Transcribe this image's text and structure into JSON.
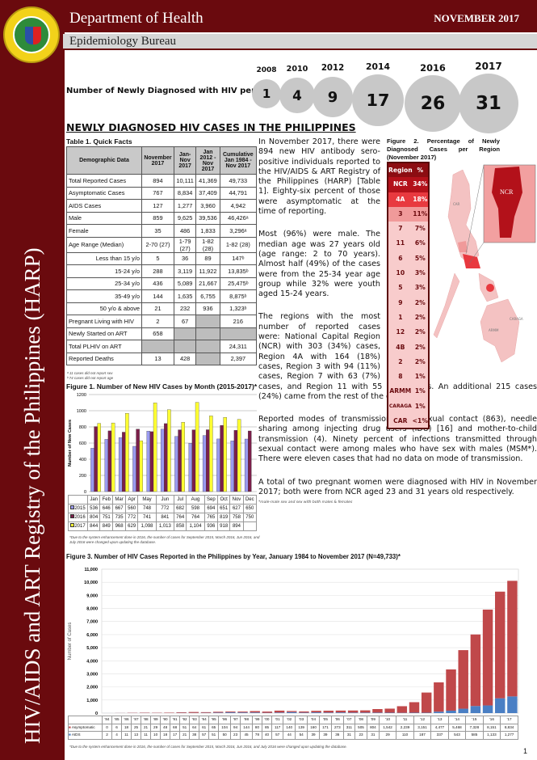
{
  "sidebar": {
    "title": "HIV/AIDS  and ART Registry of the Philippines (HARP)"
  },
  "header": {
    "department": "Department of Health",
    "bureau": "Epidemiology Bureau",
    "month": "NOVEMBER 2017",
    "seal_text": "REPUBLIC OF THE PHILIPPINES · DEPARTMENT OF HEALTH"
  },
  "per_day": {
    "label": "Number of Newly Diagnosed with HIV per day:",
    "items": [
      {
        "year": "2008",
        "value": "1"
      },
      {
        "year": "2010",
        "value": "4"
      },
      {
        "year": "2012",
        "value": "9"
      },
      {
        "year": "2014",
        "value": "17"
      },
      {
        "year": "2016",
        "value": "26"
      },
      {
        "year": "2017",
        "value": "31"
      }
    ]
  },
  "main_title": "NEWLY DIAGNOSED HIV CASES IN THE PHILIPPINES",
  "table1": {
    "caption": "Table 1. Quick Facts",
    "headers": [
      "Demographic Data",
      "November 2017",
      "Jan-Nov 2017",
      "Jan 2012 - Nov 2017",
      "Cumulative Jan 1984 - Nov 2017"
    ],
    "rows": [
      {
        "label": "Total Reported Cases",
        "cells": [
          "894",
          "10,111",
          "41,369",
          "49,733"
        ]
      },
      {
        "label": "Asymptomatic Cases",
        "cells": [
          "767",
          "8,834",
          "37,409",
          "44,791"
        ]
      },
      {
        "label": "AIDS Cases",
        "cells": [
          "127",
          "1,277",
          "3,960",
          "4,942"
        ]
      },
      {
        "label": "Male",
        "cells": [
          "859",
          "9,625",
          "39,536",
          "46,426ᵃ"
        ]
      },
      {
        "label": "Female",
        "cells": [
          "35",
          "486",
          "1,833",
          "3,296ᵃ"
        ]
      },
      {
        "label": "Age Range (Median)",
        "cells": [
          "2-70 (27)",
          "1-79 (27)",
          "1-82 (28)",
          "1-82 (28)"
        ]
      },
      {
        "label": "Less than 15 y/o",
        "sub": true,
        "cells": [
          "5",
          "36",
          "89",
          "147ᵇ"
        ]
      },
      {
        "label": "15-24 y/o",
        "sub": true,
        "cells": [
          "288",
          "3,119",
          "11,922",
          "13,835ᵇ"
        ]
      },
      {
        "label": "25-34 y/o",
        "sub": true,
        "cells": [
          "436",
          "5,089",
          "21,667",
          "25,475ᵇ"
        ]
      },
      {
        "label": "35-49 y/o",
        "sub": true,
        "cells": [
          "144",
          "1,635",
          "6,755",
          "8,875ᵇ"
        ]
      },
      {
        "label": "50 y/o & above",
        "sub": true,
        "cells": [
          "21",
          "232",
          "936",
          "1,323ᵇ"
        ]
      },
      {
        "label": "Pregnant Living with HIV",
        "cells": [
          "2",
          "67",
          null,
          "216"
        ]
      },
      {
        "label": "Newly Started on ART",
        "cells": [
          "658",
          null,
          null,
          null
        ]
      },
      {
        "label": "Total PLHIV on ART",
        "cells": [
          null,
          null,
          null,
          "24,311"
        ]
      },
      {
        "label": "Reported Deaths",
        "cells": [
          "13",
          "428",
          null,
          "2,397"
        ]
      }
    ],
    "footnotes": [
      "ᵃ 11 cases did not report sex",
      "ᵇ 74 cases did not report age"
    ]
  },
  "paragraphs": {
    "p1": "In November 2017, there were 894 new HIV antibody sero-positive individuals reported to the HIV/AIDS & ART Registry of the Philippines (HARP) [Table 1]. Eighty-six percent of those were asymptomatic at the time of reporting.",
    "p2": "Most (96%) were male. The median age was 27 years old (age range: 2 to 70 years). Almost half (49%) of the cases were from the 25-34 year age group while 32% were youth aged 15-24 years.",
    "p3": "The regions with the most number of reported cases were: National Capital Region (NCR) with 303 (34%) cases, Region 4A with 164 (18%) cases, Region 3 with 94 (11%) cases, Region 7 with 63 (7%) cases,  and Region 11 with 55 (6%) cases. An additional 215 cases (24%) came from the rest of the country.",
    "p4": "Reported modes of transmission were sexual contact (863), needle sharing among injecting drug users (IDU) [16] and mother-to-child transmission (4). Ninety percent of infections transmitted through sexual contact were among males who have sex with males (MSM*). There were eleven cases that had no data on mode of transmission.",
    "p5": "A total of two pregnant women were diagnosed with HIV in November 2017; both were from NCR aged 23 and 31 years old respectively.",
    "footnote": "*male-male sex and sex with both males & females"
  },
  "figure2": {
    "caption": "Figure 2. Percentage of Newly Diagnosed Cases per Region (November 2017)",
    "headers": [
      "Region",
      "%"
    ],
    "rows": [
      [
        "NCR",
        "34%"
      ],
      [
        "4A",
        "18%"
      ],
      [
        "3",
        "11%"
      ],
      [
        "7",
        "7%"
      ],
      [
        "11",
        "6%"
      ],
      [
        "6",
        "5%"
      ],
      [
        "10",
        "3%"
      ],
      [
        "5",
        "3%"
      ],
      [
        "9",
        "2%"
      ],
      [
        "1",
        "2%"
      ],
      [
        "12",
        "2%"
      ],
      [
        "4B",
        "2%"
      ],
      [
        "2",
        "2%"
      ],
      [
        "8",
        "1%"
      ],
      [
        "ARMM",
        "1%"
      ],
      [
        "CARAGA",
        "1%"
      ],
      [
        "CAR",
        "<1%"
      ]
    ],
    "map_labels": [
      "NCR",
      "CAR",
      "CARAGA",
      "ARMM"
    ],
    "colors": {
      "header": "#8c0d12",
      "top": "#b3111a",
      "second": "#e8393f",
      "third": "#f09a9a",
      "rest": "#f8cccc"
    }
  },
  "chart_data": [
    {
      "type": "bar",
      "title": "Figure 1. Number of New HIV Cases by Month  (2015-2017)*",
      "ylabel": "Number of New Cases",
      "ylim": [
        0,
        1200
      ],
      "yticks": [
        0,
        200,
        400,
        600,
        800,
        1000,
        1200
      ],
      "grid": true,
      "categories": [
        "Jan",
        "Feb",
        "Mar",
        "Apr",
        "May",
        "Jun",
        "Jul",
        "Aug",
        "Sep",
        "Oct",
        "Nov",
        "Dec"
      ],
      "series": [
        {
          "name": "2015",
          "color": "#9a9af0",
          "values": [
            536,
            646,
            667,
            560,
            748,
            772,
            682,
            598,
            694,
            651,
            627,
            650
          ]
        },
        {
          "name": "2016",
          "color": "#7b1f4a",
          "values": [
            804,
            751,
            735,
            772,
            741,
            841,
            764,
            764,
            765,
            819,
            758,
            750
          ]
        },
        {
          "name": "2017",
          "color": "#ffff33",
          "values": [
            844,
            849,
            968,
            629,
            1098,
            1013,
            858,
            1104,
            936,
            918,
            894,
            null
          ]
        }
      ],
      "footnote": "*Due to the system enhancement done in 2016, the number of cases for September 2015, March 2016, Jun 2016, and July 2016 were changed upon updating the database."
    },
    {
      "type": "bar",
      "stacked": true,
      "title": "Figure 3. Number of HIV Cases Reported in the Philippines by Year, January 1984 to November 2017 (N=49,733)*",
      "ylabel": "Number of Cases",
      "ylim": [
        0,
        11000
      ],
      "yticks": [
        "0",
        "1,000",
        "2,000",
        "3,000",
        "4,000",
        "5,000",
        "6,000",
        "7,000",
        "8,000",
        "9,000",
        "10,000",
        "11,000"
      ],
      "grid": true,
      "categories": [
        "'84",
        "'85",
        "'86",
        "'87",
        "'88",
        "'89",
        "'90",
        "'91",
        "'92",
        "'93",
        "'94",
        "'95",
        "'96",
        "'97",
        "'98",
        "'99",
        "'00",
        "'01",
        "'02",
        "'03",
        "'04",
        "'05",
        "'06",
        "'07",
        "'08",
        "'09",
        "'10",
        "'11",
        "'12",
        "'13",
        "'14",
        "'15",
        "'16",
        "'17"
      ],
      "series": [
        {
          "name": "Asymptomatic",
          "color": "#c0484a",
          "values": [
            0,
            6,
            18,
            25,
            21,
            29,
            48,
            68,
            51,
            64,
            61,
            65,
            104,
            94,
            144,
            80,
            85,
            117,
            140,
            139,
            160,
            171,
            273,
            311,
            505,
            804,
            1542,
            2239,
            3151,
            4477,
            5468,
            7328,
            8151,
            8834
          ]
        },
        {
          "name": "AIDS",
          "color": "#4a7fc4",
          "values": [
            2,
            4,
            11,
            13,
            11,
            10,
            18,
            17,
            21,
            38,
            57,
            51,
            50,
            23,
            45,
            78,
            40,
            57,
            44,
            54,
            39,
            39,
            36,
            31,
            23,
            31,
            29,
            110,
            187,
            337,
            543,
            585,
            1133,
            1277
          ]
        }
      ],
      "footnote": "*Due to the system enhancement done in 2016, the number of cases for September 2015, March 2016, Jun 2016, and July 2016 were changed upon updating the database."
    }
  ],
  "page_number": "1"
}
